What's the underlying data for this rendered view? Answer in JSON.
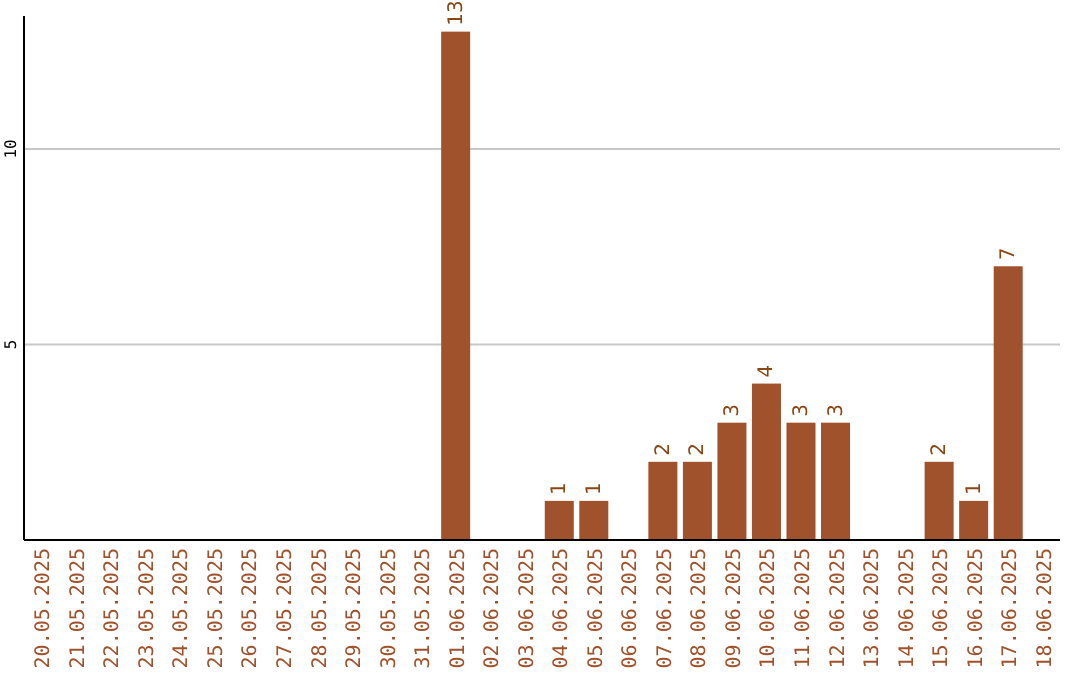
{
  "chart_data": {
    "type": "bar",
    "categories": [
      "20.05.2025",
      "21.05.2025",
      "22.05.2025",
      "23.05.2025",
      "24.05.2025",
      "25.05.2025",
      "26.05.2025",
      "27.05.2025",
      "28.05.2025",
      "29.05.2025",
      "30.05.2025",
      "31.05.2025",
      "01.06.2025",
      "02.06.2025",
      "03.06.2025",
      "04.06.2025",
      "05.06.2025",
      "06.06.2025",
      "07.06.2025",
      "08.06.2025",
      "09.06.2025",
      "10.06.2025",
      "11.06.2025",
      "12.06.2025",
      "13.06.2025",
      "14.06.2025",
      "15.06.2025",
      "16.06.2025",
      "17.06.2025",
      "18.06.2025"
    ],
    "values": [
      0,
      0,
      0,
      0,
      0,
      0,
      0,
      0,
      0,
      0,
      0,
      0,
      13,
      0,
      0,
      1,
      1,
      0,
      2,
      2,
      3,
      4,
      3,
      3,
      0,
      0,
      2,
      1,
      7,
      0
    ],
    "value_labels": [
      null,
      null,
      null,
      null,
      null,
      null,
      null,
      null,
      null,
      null,
      null,
      null,
      "13",
      null,
      null,
      "1",
      "1",
      null,
      "2",
      "2",
      "3",
      "4",
      "3",
      "3",
      null,
      null,
      "2",
      "1",
      "7",
      null
    ],
    "color": "#a0522d",
    "ylim": [
      0,
      13.4
    ],
    "yticks": [
      5,
      10
    ],
    "grid": "y"
  }
}
